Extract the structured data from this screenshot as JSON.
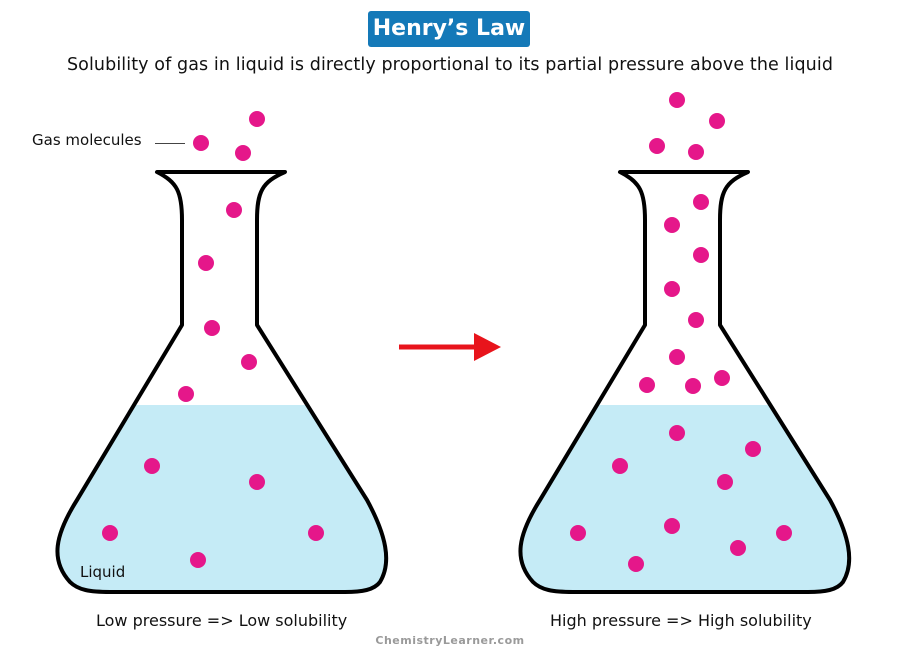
{
  "title": "Henry’s Law",
  "subtitle": "Solubility of gas in liquid is directly proportional to its partial pressure above the liquid",
  "labels": {
    "gas_molecules": "Gas molecules",
    "liquid": "Liquid"
  },
  "captions": {
    "left": "Low pressure => Low solubility",
    "right": "High pressure => High solubility"
  },
  "credit": "ChemistryLearner.com",
  "colors": {
    "title_bg": "#1479b8",
    "liquid": "#c5ebf6",
    "molecule": "#e5178a",
    "arrow": "#e8141c",
    "flask_outline": "#000000"
  },
  "left_flask": {
    "gas_molecules_count": 9,
    "dissolved_molecules_count": 6
  },
  "right_flask": {
    "gas_molecules_count": 14,
    "dissolved_molecules_count": 11
  }
}
